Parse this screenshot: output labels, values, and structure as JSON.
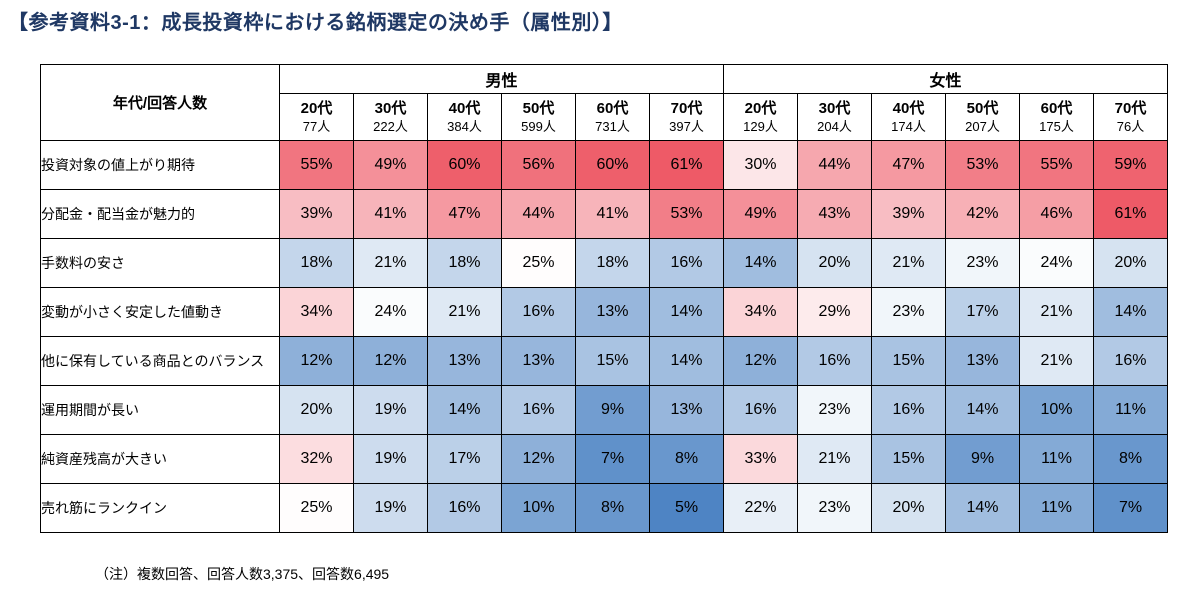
{
  "title": "【参考資料3-1：成長投資枠における銘柄選定の決め手（属性別）】",
  "title_color": "#1f3864",
  "note": "（注）複数回答、回答人数3,375、回答数6,495",
  "chart_data": {
    "type": "heatmap",
    "corner_label": "年代/回答人数",
    "unit": "%",
    "groups": [
      {
        "label": "男性",
        "columns": [
          {
            "age": "20代",
            "count": "77人"
          },
          {
            "age": "30代",
            "count": "222人"
          },
          {
            "age": "40代",
            "count": "384人"
          },
          {
            "age": "50代",
            "count": "599人"
          },
          {
            "age": "60代",
            "count": "731人"
          },
          {
            "age": "70代",
            "count": "397人"
          }
        ]
      },
      {
        "label": "女性",
        "columns": [
          {
            "age": "20代",
            "count": "129人"
          },
          {
            "age": "30代",
            "count": "204人"
          },
          {
            "age": "40代",
            "count": "174人"
          },
          {
            "age": "50代",
            "count": "207人"
          },
          {
            "age": "60代",
            "count": "175人"
          },
          {
            "age": "70代",
            "count": "76人"
          }
        ]
      }
    ],
    "rows": [
      {
        "label": "投資対象の値上がり期待",
        "values": [
          55,
          49,
          60,
          56,
          60,
          61,
          30,
          44,
          47,
          53,
          55,
          59
        ]
      },
      {
        "label": "分配金・配当金が魅力的",
        "values": [
          39,
          41,
          47,
          44,
          41,
          53,
          49,
          43,
          39,
          42,
          46,
          61
        ]
      },
      {
        "label": "手数料の安さ",
        "values": [
          18,
          21,
          18,
          25,
          18,
          16,
          14,
          20,
          21,
          23,
          24,
          20
        ]
      },
      {
        "label": "変動が小さく安定した値動き",
        "values": [
          34,
          24,
          21,
          16,
          13,
          14,
          34,
          29,
          23,
          17,
          21,
          14
        ]
      },
      {
        "label": "他に保有している商品とのバランス",
        "values": [
          12,
          12,
          13,
          13,
          15,
          14,
          12,
          16,
          15,
          13,
          21,
          16
        ]
      },
      {
        "label": "運用期間が長い",
        "values": [
          20,
          19,
          14,
          16,
          9,
          13,
          16,
          23,
          16,
          14,
          10,
          11
        ]
      },
      {
        "label": "純資産残高が大きい",
        "values": [
          32,
          19,
          17,
          12,
          7,
          8,
          33,
          21,
          15,
          9,
          11,
          8
        ]
      },
      {
        "label": "売れ筋にランクイン",
        "values": [
          25,
          19,
          16,
          10,
          8,
          5,
          22,
          23,
          20,
          14,
          11,
          7
        ]
      }
    ],
    "color_scale": {
      "high_color": "#ee5a67",
      "mid_color": "#ffffff",
      "low_color": "#4e84c4",
      "midpoint": 24.5,
      "max": 61,
      "min": 5
    }
  }
}
